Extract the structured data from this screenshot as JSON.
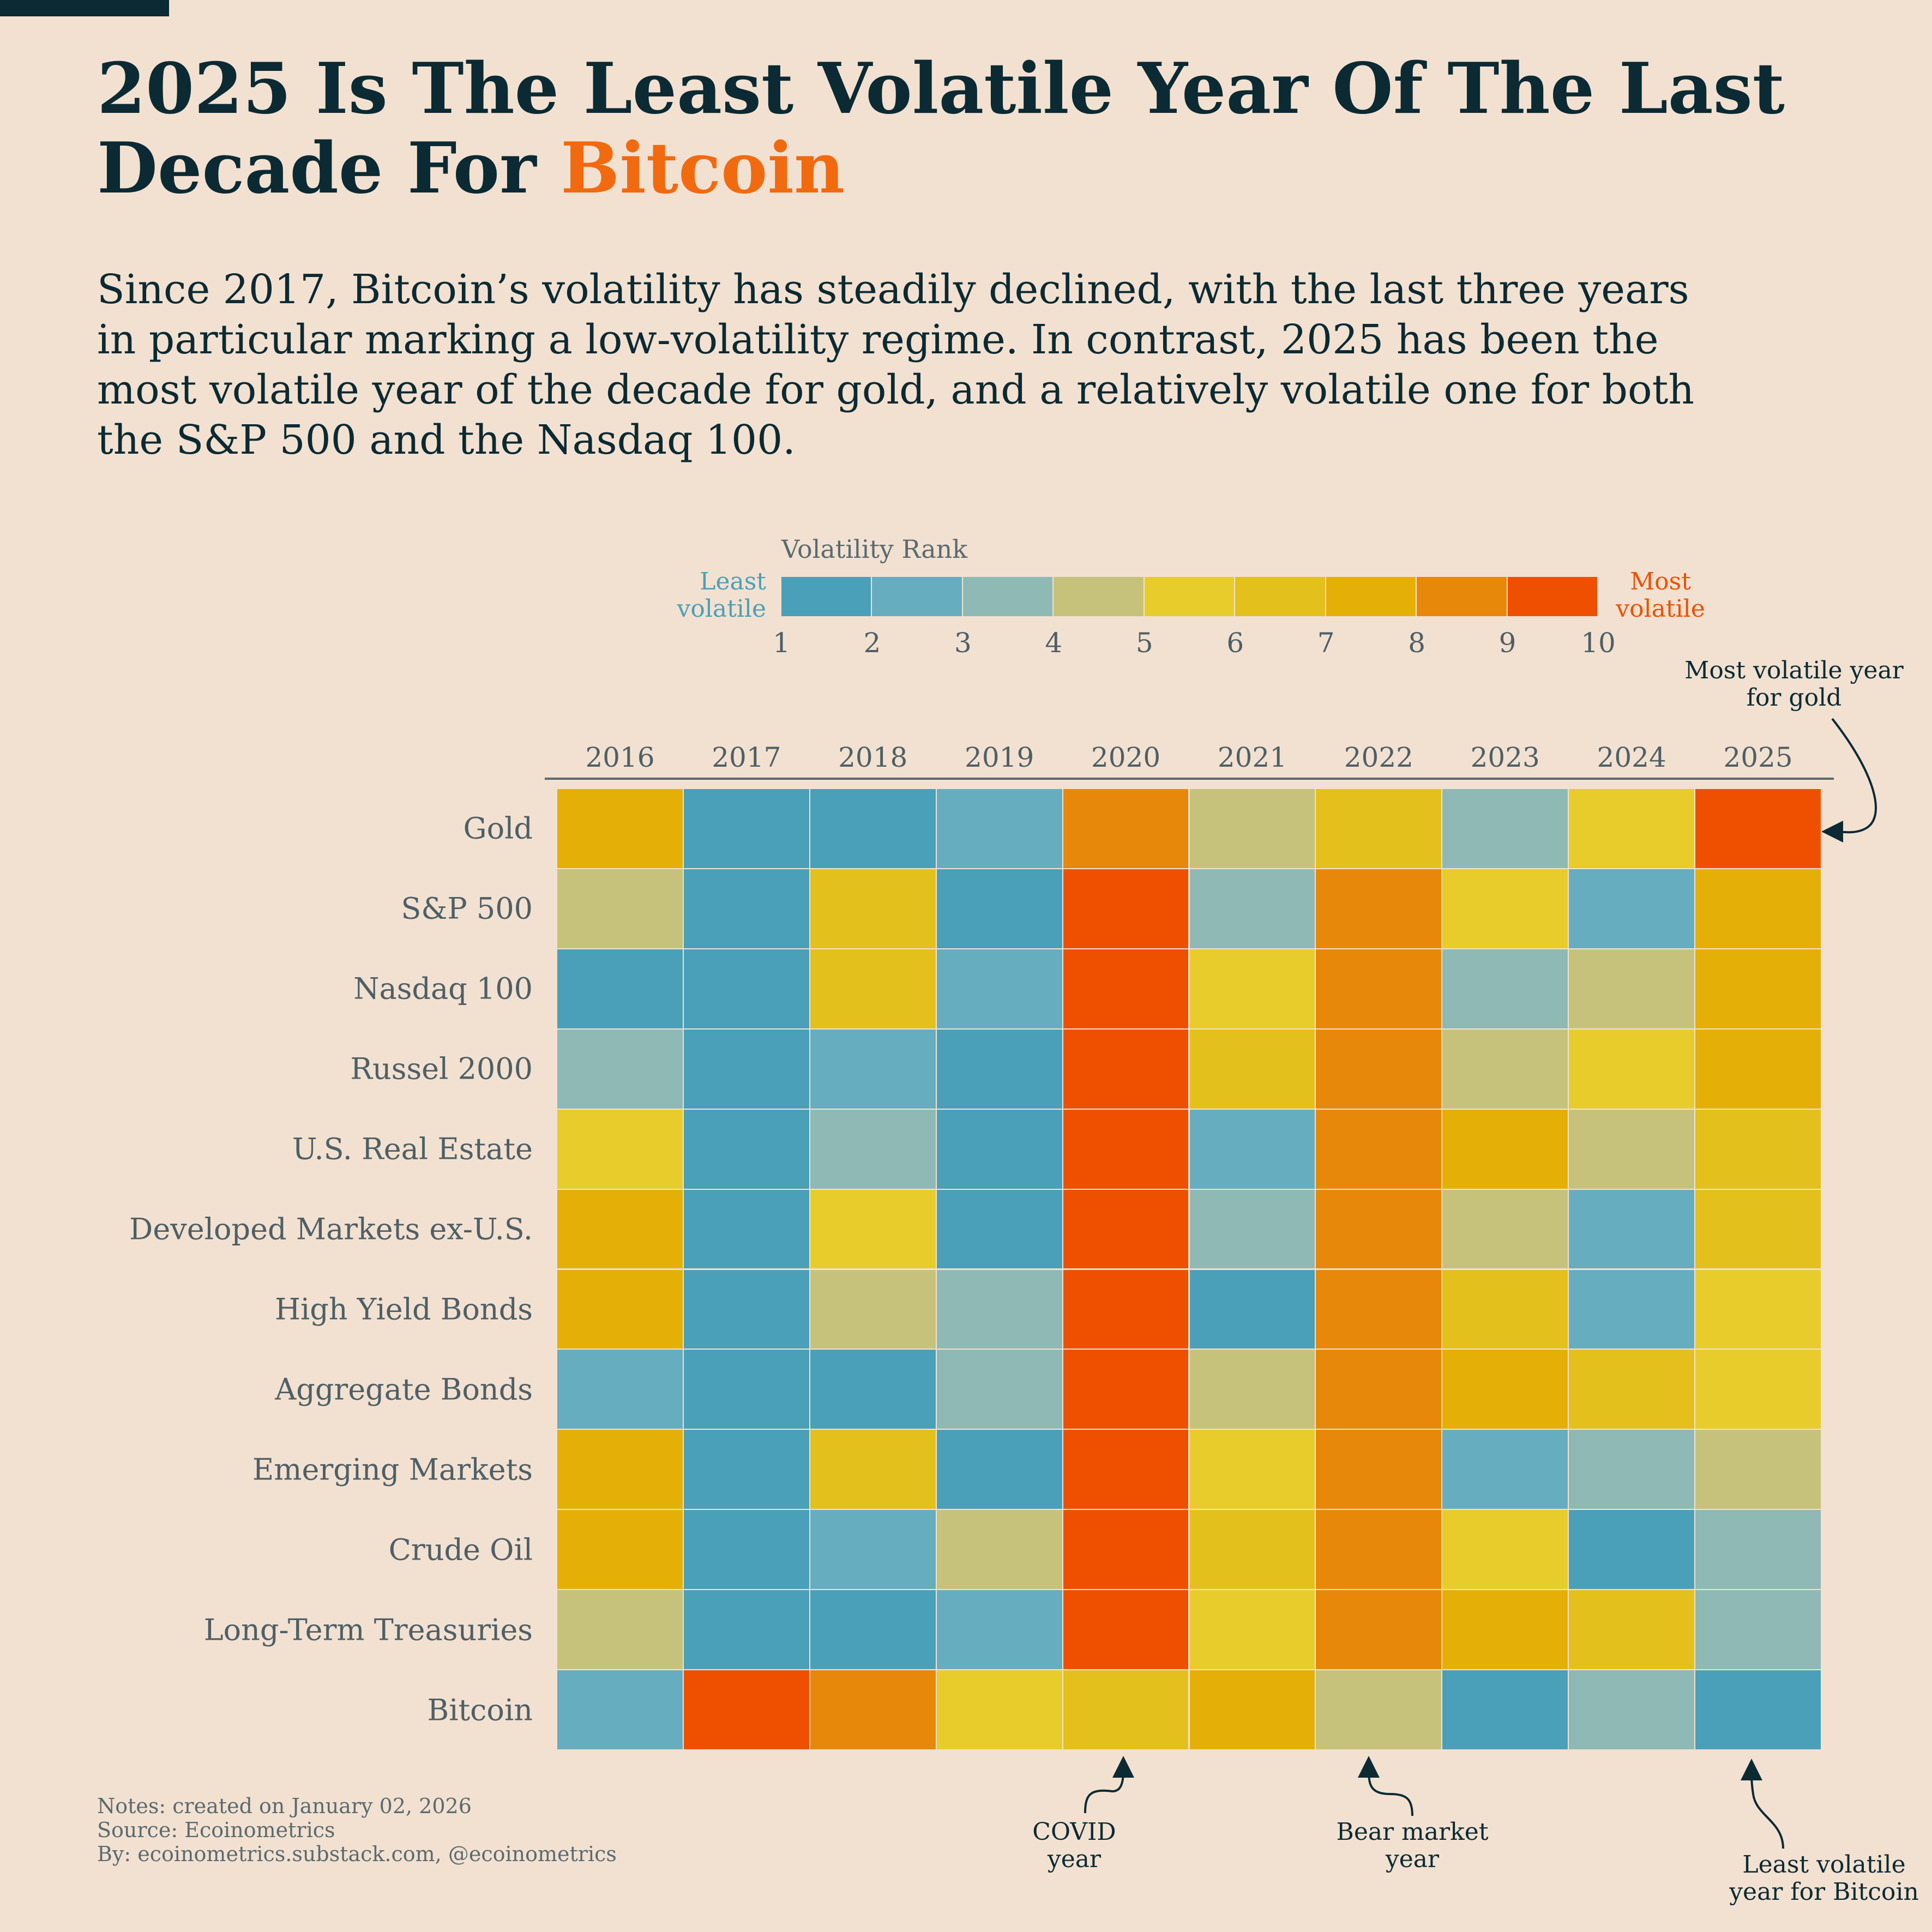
{
  "title": {
    "part1": "2025 Is The Least Volatile Year Of The Last Decade For ",
    "highlight": "Bitcoin"
  },
  "subtitle": "Since 2017, Bitcoin’s volatility has steadily declined, with the last three years in particular marking a low-volatility regime. In contrast, 2025 has been the most volatile year of the decade for gold, and a relatively volatile one for both the S&P 500 and the Nasdaq 100.",
  "legend": {
    "title": "Volatility Rank",
    "least": "Least volatile",
    "most": "Most volatile",
    "ticks": [
      "1",
      "2",
      "3",
      "4",
      "5",
      "6",
      "7",
      "8",
      "9",
      "10"
    ],
    "colors": [
      "#4aa0b8",
      "#67adc0",
      "#8fb9b4",
      "#c6c27c",
      "#e8cc2c",
      "#e4c01c",
      "#e4b008",
      "#e8880a",
      "#ee5000"
    ]
  },
  "annotations": {
    "gold": "Most volatile year for gold",
    "covid": "COVID year",
    "bear": "Bear market year",
    "bitcoin": "Least volatile year for Bitcoin"
  },
  "notes": [
    "Notes: created on January 02, 2026",
    "Source: Ecoinometrics",
    "By: ecoinometrics.substack.com, @ecoinometrics"
  ],
  "chart_data": {
    "type": "heatmap",
    "title": "Volatility Rank",
    "x": [
      "2016",
      "2017",
      "2018",
      "2019",
      "2020",
      "2021",
      "2022",
      "2023",
      "2024",
      "2025"
    ],
    "y": [
      "Gold",
      "S&P 500",
      "Nasdaq 100",
      "Russel 2000",
      "U.S. Real Estate",
      "Developed Markets ex-U.S.",
      "High Yield Bonds",
      "Aggregate Bonds",
      "Emerging Markets",
      "Crude Oil",
      "Long-Term Treasuries",
      "Bitcoin"
    ],
    "rank_colors": {
      "1": "#4aa0b8",
      "2": "#4aa0b8",
      "3": "#67adc0",
      "4": "#8fb9b4",
      "5": "#c6c27c",
      "6": "#e8cc2c",
      "7": "#e4c01c",
      "8": "#e4b008",
      "9": "#e8880a",
      "10": "#ee5000"
    },
    "values": [
      [
        8,
        1,
        2,
        3,
        9,
        5,
        7,
        4,
        6,
        10
      ],
      [
        5,
        1,
        7,
        2,
        10,
        4,
        9,
        6,
        3,
        8
      ],
      [
        1,
        2,
        7,
        3,
        10,
        6,
        9,
        4,
        5,
        8
      ],
      [
        4,
        1,
        3,
        2,
        10,
        7,
        9,
        5,
        6,
        8
      ],
      [
        6,
        1,
        4,
        2,
        10,
        3,
        9,
        8,
        5,
        7
      ],
      [
        8,
        1,
        6,
        2,
        10,
        4,
        9,
        5,
        3,
        7
      ],
      [
        8,
        1,
        5,
        4,
        10,
        2,
        9,
        7,
        3,
        6
      ],
      [
        3,
        1,
        2,
        4,
        10,
        5,
        9,
        8,
        7,
        6
      ],
      [
        8,
        1,
        7,
        2,
        10,
        6,
        9,
        3,
        4,
        5
      ],
      [
        8,
        1,
        3,
        5,
        10,
        7,
        9,
        6,
        2,
        4
      ],
      [
        5,
        1,
        2,
        3,
        10,
        6,
        9,
        8,
        7,
        4
      ],
      [
        3,
        10,
        9,
        6,
        7,
        8,
        5,
        2,
        4,
        1
      ]
    ]
  }
}
